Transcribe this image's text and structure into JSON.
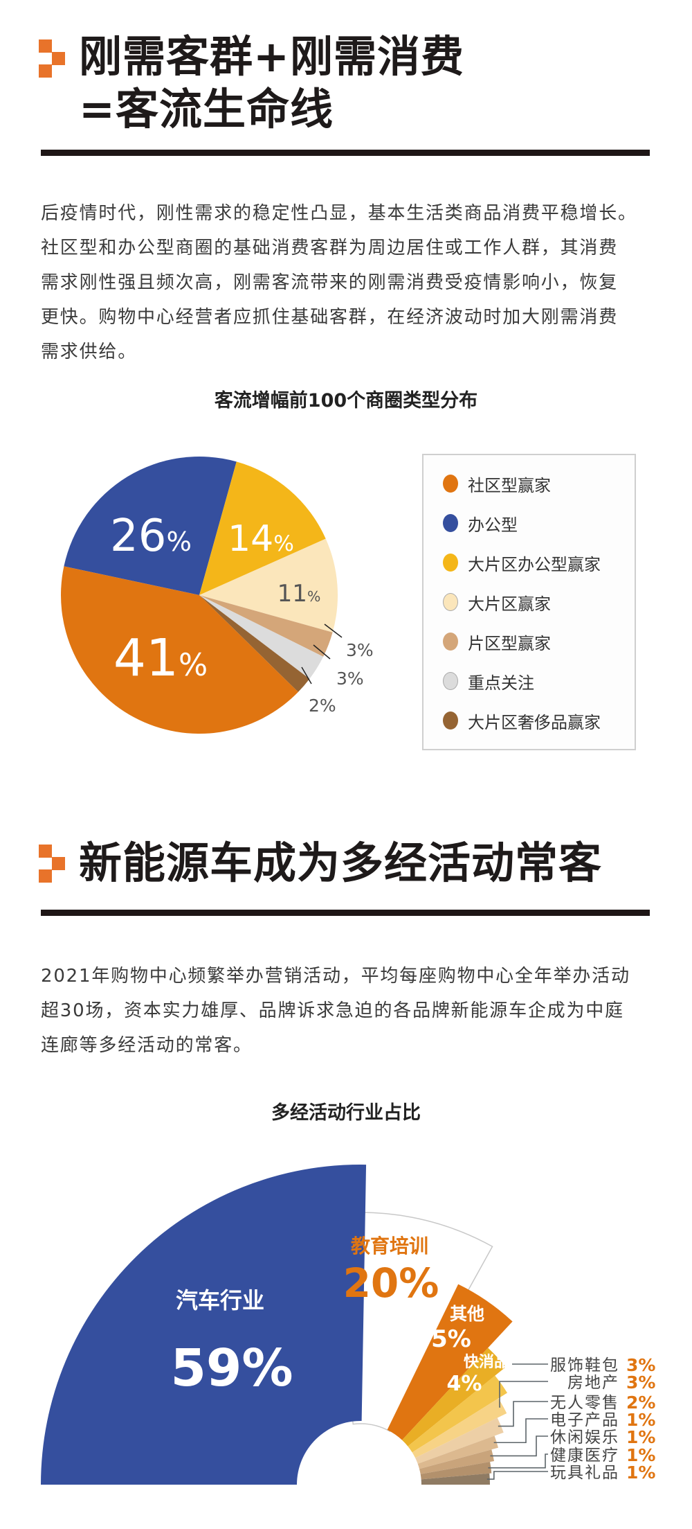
{
  "section1": {
    "title_lines": [
      "刚需客群+刚需消费",
      "=客流生命线"
    ],
    "paragraph_lines": [
      "后疫情时代，刚性需求的稳定性凸显，基本生活类商品消费平稳增长。",
      "社区型和办公型商圈的基础消费客群为周边居住或工作人群，其消费",
      "需求刚性强且频次高，刚需客流带来的刚需消费受疫情影响小，恢复",
      "更快。购物中心经营者应抓住基础客群，在经济波动时加大刚需消费",
      "需求供给。"
    ]
  },
  "section2": {
    "title": "新能源车成为多经活动常客",
    "paragraph_lines": [
      "2021年购物中心频繁举办营销活动，平均每座购物中心全年举办活动",
      "超30场，资本实力雄厚、品牌诉求急迫的各品牌新能源车企成为中庭",
      "连廊等多经活动的常客。"
    ]
  },
  "colors": {
    "accent": "#e8732a",
    "highlight": "#f8f0a0"
  },
  "chart_data": [
    {
      "type": "pie",
      "title": "客流增幅前100个商圈类型分布",
      "legend_position": "right",
      "slices": [
        {
          "name": "社区型赢家",
          "value": 41,
          "label": "41%",
          "color": "#e07511"
        },
        {
          "name": "办公型",
          "value": 26,
          "label": "26%",
          "color": "#354f9e"
        },
        {
          "name": "大片区办公型赢家",
          "value": 14,
          "label": "14%",
          "color": "#f4b619"
        },
        {
          "name": "大片区赢家",
          "value": 11,
          "label": "11%",
          "color": "#fbe6bb"
        },
        {
          "name": "片区型赢家",
          "value": 3,
          "label": "3%",
          "color": "#d4a679"
        },
        {
          "name": "重点关注",
          "value": 3,
          "label": "3%",
          "color": "#dcdcdc"
        },
        {
          "name": "大片区奢侈品赢家",
          "value": 2,
          "label": "2%",
          "color": "#956433"
        }
      ]
    },
    {
      "type": "pie",
      "subtype": "rose",
      "title": "多经活动行业占比",
      "slices": [
        {
          "name": "汽车行业",
          "value": 59,
          "label": "59%",
          "color": "#354f9e"
        },
        {
          "name": "教育培训",
          "value": 20,
          "label": "20%",
          "color": "#ffffff"
        },
        {
          "name": "其他",
          "value": 5,
          "label": "5%",
          "color": "#e07511"
        },
        {
          "name": "快消品",
          "value": 4,
          "label": "4%",
          "color": "#e9ae25"
        },
        {
          "name": "服饰鞋包",
          "value": 3,
          "label": "3%",
          "color": "#f3c54c"
        },
        {
          "name": "房地产",
          "value": 3,
          "label": "3%",
          "color": "#f7d386"
        },
        {
          "name": "无人零售",
          "value": 2,
          "label": "2%",
          "color": "#edcfa6"
        },
        {
          "name": "电子产品",
          "value": 1,
          "label": "1%",
          "color": "#dcb98f"
        },
        {
          "name": "休闲娱乐",
          "value": 1,
          "label": "1%",
          "color": "#c9a47b"
        },
        {
          "name": "健康医疗",
          "value": 1,
          "label": "1%",
          "color": "#b3916c"
        },
        {
          "name": "玩具礼品",
          "value": 1,
          "label": "1%",
          "color": "#8f7b63"
        }
      ]
    }
  ]
}
